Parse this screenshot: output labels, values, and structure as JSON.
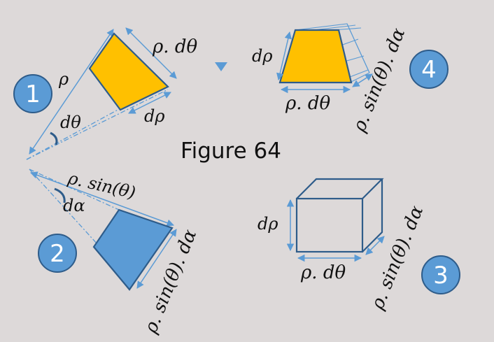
{
  "figure": {
    "caption": "Figure 64",
    "colors": {
      "background": "#ddd9d9",
      "orange": "#ffc000",
      "blue": "#5b9bd5",
      "outline": "#2e5c8a",
      "arrow": "#5b9bd5"
    }
  },
  "panel1": {
    "badge": "1",
    "rho": "ρ",
    "d_theta": "dθ",
    "rho_d_theta": "ρ. dθ",
    "d_rho": "dρ"
  },
  "panel2": {
    "badge": "2",
    "rho_sin_theta": "ρ. sin(θ)",
    "d_alpha": "dα",
    "rho_sin_theta_d_alpha": "ρ. sin(θ). dα"
  },
  "panel3": {
    "badge": "3",
    "d_rho": "dρ",
    "rho_d_theta": "ρ. dθ",
    "rho_sin_theta_d_alpha": "ρ. sin(θ). dα"
  },
  "panel4": {
    "badge": "4",
    "d_rho": "dρ",
    "rho_d_theta": "ρ. dθ",
    "rho_sin_theta_d_alpha": "ρ. sin(θ). dα"
  }
}
